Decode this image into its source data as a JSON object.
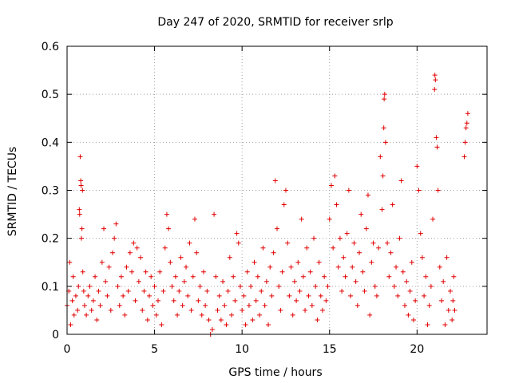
{
  "chart_data": {
    "type": "scatter",
    "title": "Day 247 of 2020, SRMTID for receiver srlp",
    "xlabel": "GPS time / hours",
    "ylabel": "SRMTID / TECUs",
    "xlim": [
      0,
      24
    ],
    "ylim": [
      0,
      0.6
    ],
    "x_ticks": [
      0,
      5,
      10,
      15,
      20
    ],
    "x_tick_labels": [
      "0",
      "5",
      "10",
      "15",
      "20"
    ],
    "y_ticks": [
      0,
      0.1,
      0.2,
      0.3,
      0.4,
      0.5,
      0.6
    ],
    "y_tick_labels": [
      "0",
      "0.1",
      "0.2",
      "0.3",
      "0.4",
      "0.5",
      "0.6"
    ],
    "grid": true,
    "marker": "+",
    "color": "#e00000",
    "series": [
      {
        "name": "SRMTID",
        "points": [
          [
            0.0,
            0.06
          ],
          [
            0.1,
            0.09
          ],
          [
            0.15,
            0.15
          ],
          [
            0.2,
            0.02
          ],
          [
            0.3,
            0.07
          ],
          [
            0.35,
            0.12
          ],
          [
            0.4,
            0.04
          ],
          [
            0.5,
            0.08
          ],
          [
            0.6,
            0.05
          ],
          [
            0.65,
            0.1
          ],
          [
            0.7,
            0.26
          ],
          [
            0.72,
            0.25
          ],
          [
            0.75,
            0.37
          ],
          [
            0.78,
            0.32
          ],
          [
            0.8,
            0.31
          ],
          [
            0.82,
            0.2
          ],
          [
            0.85,
            0.22
          ],
          [
            0.88,
            0.3
          ],
          [
            0.9,
            0.13
          ],
          [
            0.95,
            0.09
          ],
          [
            1.0,
            0.06
          ],
          [
            1.1,
            0.04
          ],
          [
            1.2,
            0.08
          ],
          [
            1.3,
            0.1
          ],
          [
            1.4,
            0.05
          ],
          [
            1.5,
            0.07
          ],
          [
            1.6,
            0.12
          ],
          [
            1.7,
            0.03
          ],
          [
            1.8,
            0.09
          ],
          [
            1.9,
            0.06
          ],
          [
            2.0,
            0.15
          ],
          [
            2.1,
            0.22
          ],
          [
            2.2,
            0.11
          ],
          [
            2.3,
            0.08
          ],
          [
            2.4,
            0.14
          ],
          [
            2.5,
            0.05
          ],
          [
            2.6,
            0.17
          ],
          [
            2.7,
            0.2
          ],
          [
            2.8,
            0.23
          ],
          [
            2.9,
            0.1
          ],
          [
            3.0,
            0.06
          ],
          [
            3.1,
            0.12
          ],
          [
            3.2,
            0.08
          ],
          [
            3.3,
            0.04
          ],
          [
            3.4,
            0.14
          ],
          [
            3.5,
            0.09
          ],
          [
            3.6,
            0.17
          ],
          [
            3.7,
            0.13
          ],
          [
            3.8,
            0.19
          ],
          [
            3.9,
            0.07
          ],
          [
            4.0,
            0.18
          ],
          [
            4.1,
            0.11
          ],
          [
            4.2,
            0.16
          ],
          [
            4.3,
            0.05
          ],
          [
            4.4,
            0.09
          ],
          [
            4.5,
            0.13
          ],
          [
            4.6,
            0.03
          ],
          [
            4.7,
            0.08
          ],
          [
            4.8,
            0.12
          ],
          [
            4.9,
            0.06
          ],
          [
            5.0,
            0.1
          ],
          [
            5.1,
            0.04
          ],
          [
            5.2,
            0.07
          ],
          [
            5.3,
            0.13
          ],
          [
            5.4,
            0.02
          ],
          [
            5.5,
            0.09
          ],
          [
            5.6,
            0.18
          ],
          [
            5.7,
            0.25
          ],
          [
            5.8,
            0.22
          ],
          [
            5.9,
            0.15
          ],
          [
            6.0,
            0.1
          ],
          [
            6.1,
            0.07
          ],
          [
            6.2,
            0.12
          ],
          [
            6.3,
            0.04
          ],
          [
            6.4,
            0.09
          ],
          [
            6.5,
            0.16
          ],
          [
            6.6,
            0.06
          ],
          [
            6.7,
            0.11
          ],
          [
            6.8,
            0.14
          ],
          [
            6.9,
            0.08
          ],
          [
            7.0,
            0.19
          ],
          [
            7.1,
            0.05
          ],
          [
            7.2,
            0.12
          ],
          [
            7.3,
            0.24
          ],
          [
            7.4,
            0.17
          ],
          [
            7.5,
            0.07
          ],
          [
            7.6,
            0.1
          ],
          [
            7.7,
            0.04
          ],
          [
            7.8,
            0.13
          ],
          [
            7.9,
            0.06
          ],
          [
            8.0,
            0.09
          ],
          [
            8.1,
            0.03
          ],
          [
            8.2,
            0.0
          ],
          [
            8.3,
            0.01
          ],
          [
            8.4,
            0.25
          ],
          [
            8.5,
            0.12
          ],
          [
            8.6,
            0.05
          ],
          [
            8.7,
            0.08
          ],
          [
            8.8,
            0.03
          ],
          [
            8.9,
            0.11
          ],
          [
            9.0,
            0.06
          ],
          [
            9.1,
            0.02
          ],
          [
            9.2,
            0.09
          ],
          [
            9.3,
            0.16
          ],
          [
            9.4,
            0.04
          ],
          [
            9.5,
            0.12
          ],
          [
            9.6,
            0.07
          ],
          [
            9.7,
            0.21
          ],
          [
            9.8,
            0.19
          ],
          [
            9.9,
            0.1
          ],
          [
            10.0,
            0.05
          ],
          [
            10.1,
            0.08
          ],
          [
            10.2,
            0.02
          ],
          [
            10.3,
            0.13
          ],
          [
            10.4,
            0.06
          ],
          [
            10.5,
            0.1
          ],
          [
            10.6,
            0.03
          ],
          [
            10.7,
            0.15
          ],
          [
            10.8,
            0.07
          ],
          [
            10.9,
            0.12
          ],
          [
            11.0,
            0.04
          ],
          [
            11.1,
            0.09
          ],
          [
            11.2,
            0.18
          ],
          [
            11.3,
            0.06
          ],
          [
            11.4,
            0.11
          ],
          [
            11.5,
            0.02
          ],
          [
            11.6,
            0.14
          ],
          [
            11.7,
            0.08
          ],
          [
            11.8,
            0.17
          ],
          [
            11.9,
            0.32
          ],
          [
            12.0,
            0.22
          ],
          [
            12.1,
            0.1
          ],
          [
            12.2,
            0.05
          ],
          [
            12.3,
            0.13
          ],
          [
            12.4,
            0.27
          ],
          [
            12.5,
            0.3
          ],
          [
            12.6,
            0.19
          ],
          [
            12.7,
            0.08
          ],
          [
            12.8,
            0.14
          ],
          [
            12.9,
            0.04
          ],
          [
            13.0,
            0.11
          ],
          [
            13.1,
            0.07
          ],
          [
            13.2,
            0.15
          ],
          [
            13.3,
            0.09
          ],
          [
            13.4,
            0.24
          ],
          [
            13.5,
            0.12
          ],
          [
            13.6,
            0.05
          ],
          [
            13.7,
            0.18
          ],
          [
            13.8,
            0.08
          ],
          [
            13.9,
            0.13
          ],
          [
            14.0,
            0.06
          ],
          [
            14.1,
            0.2
          ],
          [
            14.2,
            0.1
          ],
          [
            14.3,
            0.03
          ],
          [
            14.4,
            0.15
          ],
          [
            14.5,
            0.08
          ],
          [
            14.6,
            0.05
          ],
          [
            14.7,
            0.12
          ],
          [
            14.8,
            0.07
          ],
          [
            14.9,
            0.1
          ],
          [
            15.0,
            0.24
          ],
          [
            15.1,
            0.31
          ],
          [
            15.2,
            0.18
          ],
          [
            15.3,
            0.33
          ],
          [
            15.4,
            0.27
          ],
          [
            15.5,
            0.14
          ],
          [
            15.6,
            0.2
          ],
          [
            15.7,
            0.09
          ],
          [
            15.8,
            0.16
          ],
          [
            15.9,
            0.12
          ],
          [
            16.0,
            0.21
          ],
          [
            16.1,
            0.3
          ],
          [
            16.2,
            0.08
          ],
          [
            16.3,
            0.14
          ],
          [
            16.4,
            0.19
          ],
          [
            16.5,
            0.11
          ],
          [
            16.6,
            0.06
          ],
          [
            16.7,
            0.17
          ],
          [
            16.8,
            0.25
          ],
          [
            16.9,
            0.13
          ],
          [
            17.0,
            0.09
          ],
          [
            17.1,
            0.22
          ],
          [
            17.2,
            0.29
          ],
          [
            17.3,
            0.04
          ],
          [
            17.4,
            0.15
          ],
          [
            17.5,
            0.19
          ],
          [
            17.6,
            0.1
          ],
          [
            17.7,
            0.08
          ],
          [
            17.8,
            0.18
          ],
          [
            17.9,
            0.37
          ],
          [
            18.0,
            0.26
          ],
          [
            18.05,
            0.33
          ],
          [
            18.1,
            0.43
          ],
          [
            18.12,
            0.49
          ],
          [
            18.15,
            0.5
          ],
          [
            18.2,
            0.4
          ],
          [
            18.3,
            0.19
          ],
          [
            18.4,
            0.12
          ],
          [
            18.5,
            0.17
          ],
          [
            18.6,
            0.27
          ],
          [
            18.7,
            0.1
          ],
          [
            18.8,
            0.14
          ],
          [
            18.9,
            0.08
          ],
          [
            19.0,
            0.2
          ],
          [
            19.1,
            0.32
          ],
          [
            19.2,
            0.13
          ],
          [
            19.3,
            0.06
          ],
          [
            19.4,
            0.11
          ],
          [
            19.5,
            0.04
          ],
          [
            19.6,
            0.09
          ],
          [
            19.7,
            0.15
          ],
          [
            19.8,
            0.03
          ],
          [
            19.9,
            0.07
          ],
          [
            20.0,
            0.35
          ],
          [
            20.1,
            0.3
          ],
          [
            20.2,
            0.21
          ],
          [
            20.3,
            0.16
          ],
          [
            20.4,
            0.08
          ],
          [
            20.5,
            0.12
          ],
          [
            20.6,
            0.02
          ],
          [
            20.7,
            0.06
          ],
          [
            20.8,
            0.1
          ],
          [
            20.9,
            0.24
          ],
          [
            21.0,
            0.51
          ],
          [
            21.02,
            0.54
          ],
          [
            21.05,
            0.53
          ],
          [
            21.1,
            0.41
          ],
          [
            21.15,
            0.39
          ],
          [
            21.2,
            0.3
          ],
          [
            21.3,
            0.14
          ],
          [
            21.4,
            0.07
          ],
          [
            21.5,
            0.11
          ],
          [
            21.6,
            0.02
          ],
          [
            21.7,
            0.16
          ],
          [
            21.8,
            0.05
          ],
          [
            21.9,
            0.09
          ],
          [
            22.0,
            0.03
          ],
          [
            22.05,
            0.07
          ],
          [
            22.1,
            0.12
          ],
          [
            22.15,
            0.05
          ],
          [
            22.7,
            0.37
          ],
          [
            22.75,
            0.4
          ],
          [
            22.8,
            0.43
          ],
          [
            22.85,
            0.44
          ],
          [
            22.9,
            0.46
          ]
        ]
      }
    ]
  }
}
